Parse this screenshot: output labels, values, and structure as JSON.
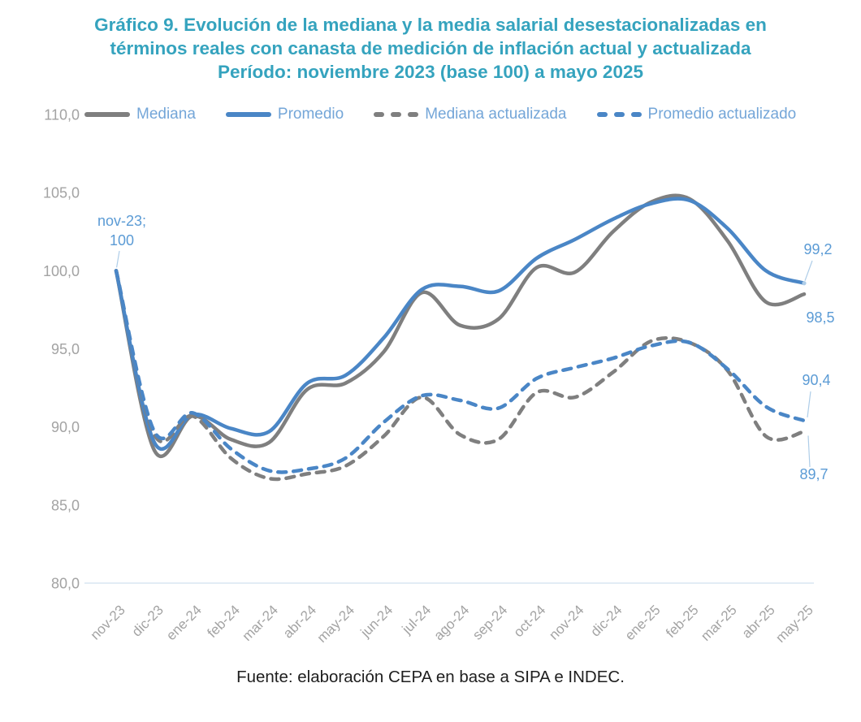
{
  "title": {
    "line1": "Gráfico 9. Evolución de la mediana y la media salarial desestacionalizadas en",
    "line2": "términos reales con canasta de medición de inflación actual y actualizada",
    "line3": "Período: noviembre 2023 (base 100) a mayo 2025"
  },
  "footer": {
    "source": "Fuente: elaboración CEPA en base a SIPA e INDEC."
  },
  "colors": {
    "title": "#35A3BE",
    "gray_series": "#7F7F7F",
    "blue_series": "#4A86C6",
    "legend_text": "#74A6D8",
    "annotation_text": "#5B9BD5",
    "leader_line": "#AECDE8",
    "tick_text": "#A3A3A3",
    "baseline": "#D9E6F2"
  },
  "chart_data": {
    "type": "line",
    "title": "Gráfico 9. Evolución de la mediana y la media salarial desestacionalizadas en términos reales con canasta de medición de inflación actual y actualizada. Período: noviembre 2023 (base 100) a mayo 2025",
    "x": [
      "nov-23",
      "dic-23",
      "ene-24",
      "feb-24",
      "mar-24",
      "abr-24",
      "may-24",
      "jun-24",
      "jul-24",
      "ago-24",
      "sep-24",
      "oct-24",
      "nov-24",
      "dic-24",
      "ene-25",
      "feb-25",
      "mar-25",
      "abr-25",
      "may-25"
    ],
    "ylim": [
      80,
      110
    ],
    "ytick_values": [
      110,
      105,
      100,
      95,
      90,
      85,
      80
    ],
    "ytick_labels": [
      "110,0",
      "105,0",
      "100,0",
      "95,0",
      "90,0",
      "85,0",
      "80,0"
    ],
    "grid": false,
    "legend_position": "top",
    "series": [
      {
        "name": "Mediana",
        "color": "#7F7F7F",
        "style": "solid",
        "values": [
          100,
          88.5,
          90.7,
          89.2,
          89.0,
          92.4,
          92.8,
          94.8,
          98.6,
          96.5,
          96.9,
          100.2,
          99.9,
          102.5,
          104.4,
          104.6,
          101.9,
          98.0,
          98.5
        ]
      },
      {
        "name": "Promedio",
        "color": "#4A86C6",
        "style": "solid",
        "values": [
          100,
          89.0,
          90.8,
          89.9,
          89.7,
          92.8,
          93.3,
          95.7,
          98.8,
          99.0,
          98.7,
          100.8,
          102.0,
          103.3,
          104.3,
          104.5,
          102.7,
          100.0,
          99.2
        ]
      },
      {
        "name": "Mediana actualizada",
        "color": "#7F7F7F",
        "style": "dashed",
        "values": [
          100,
          89.5,
          90.7,
          88.0,
          86.7,
          87.0,
          87.5,
          89.4,
          91.9,
          89.5,
          89.2,
          92.2,
          91.9,
          93.5,
          95.5,
          95.4,
          93.6,
          89.4,
          89.7
        ]
      },
      {
        "name": "Promedio actualizado",
        "color": "#4A86C6",
        "style": "dashed",
        "values": [
          100,
          89.7,
          90.9,
          88.6,
          87.2,
          87.3,
          88.0,
          90.3,
          92.0,
          91.7,
          91.2,
          93.1,
          93.8,
          94.4,
          95.2,
          95.4,
          93.7,
          91.3,
          90.4
        ]
      }
    ],
    "annotations": {
      "start_line1": "nov-23;",
      "start_line2": "100",
      "end_promedio": "99,2",
      "end_mediana": "98,5",
      "end_promedio_actualizado": "90,4",
      "end_mediana_actualizada": "89,7"
    }
  }
}
